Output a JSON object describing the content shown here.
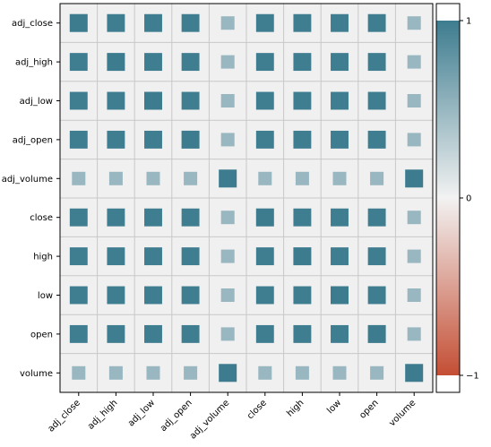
{
  "chart_data": {
    "type": "heatmap",
    "variables": [
      "adj_close",
      "adj_high",
      "adj_low",
      "adj_open",
      "adj_volume",
      "close",
      "high",
      "low",
      "open",
      "volume"
    ],
    "matrix": [
      [
        1.0,
        0.99,
        0.99,
        0.99,
        0.5,
        0.99,
        0.99,
        0.99,
        0.99,
        0.5
      ],
      [
        0.99,
        1.0,
        0.99,
        0.99,
        0.5,
        0.99,
        0.99,
        0.99,
        0.99,
        0.5
      ],
      [
        0.99,
        0.99,
        1.0,
        0.99,
        0.5,
        0.99,
        0.99,
        0.99,
        0.99,
        0.5
      ],
      [
        0.99,
        0.99,
        0.99,
        1.0,
        0.5,
        0.99,
        0.99,
        0.99,
        0.99,
        0.5
      ],
      [
        0.5,
        0.5,
        0.5,
        0.5,
        1.0,
        0.5,
        0.5,
        0.5,
        0.5,
        1.0
      ],
      [
        0.99,
        0.99,
        0.99,
        0.99,
        0.5,
        1.0,
        0.99,
        0.99,
        0.99,
        0.5
      ],
      [
        0.99,
        0.99,
        0.99,
        0.99,
        0.5,
        0.99,
        1.0,
        0.99,
        0.99,
        0.5
      ],
      [
        0.99,
        0.99,
        0.99,
        0.99,
        0.5,
        0.99,
        0.99,
        1.0,
        0.99,
        0.5
      ],
      [
        0.99,
        0.99,
        0.99,
        0.99,
        0.5,
        0.99,
        0.99,
        0.99,
        1.0,
        0.5
      ],
      [
        0.5,
        0.5,
        0.5,
        0.5,
        1.0,
        0.5,
        0.5,
        0.5,
        0.5,
        1.0
      ]
    ],
    "value_range": [
      -1,
      1
    ],
    "colorbar": {
      "ticks": [
        1,
        0,
        -1
      ],
      "tick_labels": [
        "1",
        "0",
        "−1"
      ],
      "colors": {
        "negative": "#c44e34",
        "zero": "#f2f2f2",
        "positive": "#3d7c8f"
      }
    },
    "cell_background": "#f0f0f0",
    "grid_color": "#c8c8c8",
    "grid": true
  }
}
